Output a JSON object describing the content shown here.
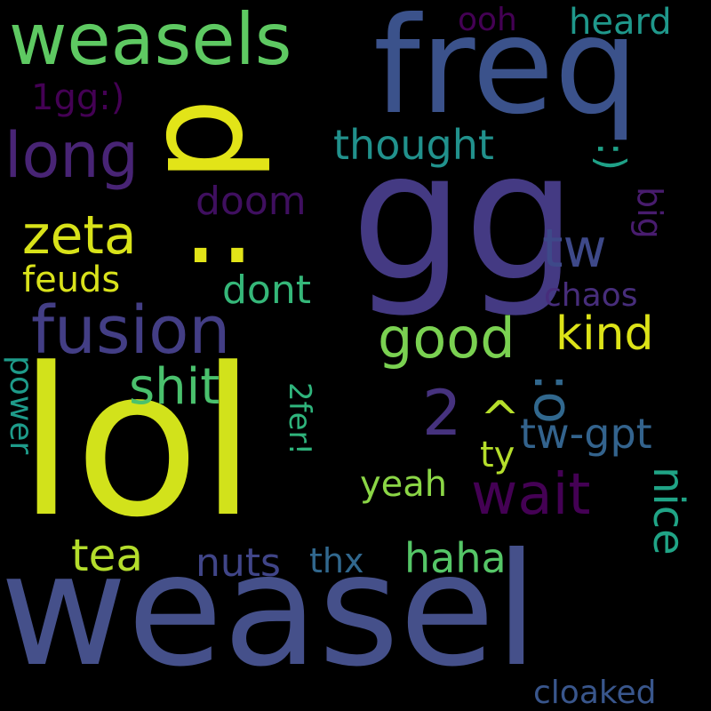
{
  "words": [
    {
      "text": "lol",
      "color": "#d2e21b",
      "rotated": false
    },
    {
      "text": "weasel",
      "color": "#45508a",
      "rotated": false
    },
    {
      "text": "gg",
      "color": "#443a83",
      "rotated": false
    },
    {
      "text": "freq",
      "color": "#3b528b",
      "rotated": false
    },
    {
      "text": "d",
      "color": "#e2e418",
      "rotated": true
    },
    {
      "text": "..",
      "color": "#e2e418",
      "rotated": false
    },
    {
      "text": "weasels",
      "color": "#5ec962",
      "rotated": false
    },
    {
      "text": "fusion",
      "color": "#433e85",
      "rotated": false
    },
    {
      "text": "long",
      "color": "#482475",
      "rotated": false
    },
    {
      "text": "zeta",
      "color": "#d8e219",
      "rotated": false
    },
    {
      "text": "good",
      "color": "#7ad151",
      "rotated": false
    },
    {
      "text": "kind",
      "color": "#dde318",
      "rotated": false
    },
    {
      "text": "wait",
      "color": "#440154",
      "rotated": false
    },
    {
      "text": "shit",
      "color": "#4ac16d",
      "rotated": false
    },
    {
      "text": "2",
      "color": "#46327e",
      "rotated": false
    },
    {
      "text": "^",
      "color": "#b5de2b",
      "rotated": false
    },
    {
      "text": ":o",
      "color": "#31688e",
      "rotated": true
    },
    {
      "text": "tw",
      "color": "#3e4989",
      "rotated": false
    },
    {
      "text": "tw-gpt",
      "color": "#33638d",
      "rotated": false
    },
    {
      "text": "nice",
      "color": "#20a486",
      "rotated": true
    },
    {
      "text": "thought",
      "color": "#21918c",
      "rotated": false
    },
    {
      "text": ":)",
      "color": "#1fa187",
      "rotated": true
    },
    {
      "text": "weasels",
      "color": "#5ec962",
      "rotated": false
    },
    {
      "text": "heard",
      "color": "#1f988b",
      "rotated": false
    },
    {
      "text": "ooh",
      "color": "#440154",
      "rotated": false
    },
    {
      "text": "1gg:)",
      "color": "#440154",
      "rotated": false
    },
    {
      "text": "doom",
      "color": "#3f0f5f",
      "rotated": false
    },
    {
      "text": "big",
      "color": "#481c6e",
      "rotated": true
    },
    {
      "text": "feuds",
      "color": "#d9e21b",
      "rotated": false
    },
    {
      "text": "dont",
      "color": "#35b779",
      "rotated": false
    },
    {
      "text": "chaos",
      "color": "#472d7b",
      "rotated": false
    },
    {
      "text": "tea",
      "color": "#b4dd2c",
      "rotated": false
    },
    {
      "text": "nuts",
      "color": "#404588",
      "rotated": false
    },
    {
      "text": "thx",
      "color": "#31688e",
      "rotated": false
    },
    {
      "text": "haha",
      "color": "#55c667",
      "rotated": false
    },
    {
      "text": "yeah",
      "color": "#8bd646",
      "rotated": false
    },
    {
      "text": "ty",
      "color": "#b5de2b",
      "rotated": false
    },
    {
      "text": "2fer!",
      "color": "#2fb47c",
      "rotated": true
    },
    {
      "text": "power",
      "color": "#1e9b8a",
      "rotated": true
    },
    {
      "text": "cloaked",
      "color": "#39568c",
      "rotated": false
    }
  ]
}
